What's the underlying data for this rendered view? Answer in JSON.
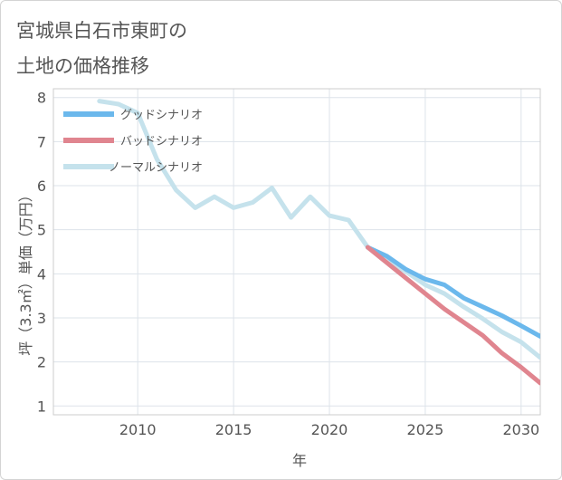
{
  "title_lines": [
    "宮城県白石市東町の",
    "土地の価格推移"
  ],
  "chart_data": {
    "type": "line",
    "title": "宮城県白石市東町の土地の価格推移",
    "xlabel": "年",
    "ylabel": "坪（3.3㎡）単価（万円）",
    "xlim": [
      2005.6,
      2031.0
    ],
    "ylim": [
      0.8,
      8.2
    ],
    "xticks": [
      2010,
      2015,
      2020,
      2025,
      2030
    ],
    "yticks": [
      1,
      2,
      3,
      4,
      5,
      6,
      7,
      8
    ],
    "grid": true,
    "legend_position": "top-left",
    "series": [
      {
        "name": "ノーマルシナリオ",
        "color": "#c5e2ec",
        "x": [
          2008,
          2009,
          2010,
          2011,
          2012,
          2013,
          2014,
          2015,
          2016,
          2017,
          2018,
          2019,
          2020,
          2021,
          2022,
          2023,
          2024,
          2025,
          2026,
          2027,
          2028,
          2029,
          2030,
          2031
        ],
        "values": [
          7.92,
          7.85,
          7.65,
          6.6,
          5.9,
          5.5,
          5.75,
          5.5,
          5.62,
          5.95,
          5.28,
          5.75,
          5.32,
          5.22,
          4.6,
          4.3,
          4.05,
          3.75,
          3.55,
          3.25,
          2.98,
          2.68,
          2.45,
          2.1
        ]
      },
      {
        "name": "グッドシナリオ",
        "color": "#6bb8ec",
        "x": [
          2022,
          2023,
          2024,
          2025,
          2026,
          2027,
          2028,
          2029,
          2030,
          2031
        ],
        "values": [
          4.6,
          4.4,
          4.1,
          3.88,
          3.75,
          3.45,
          3.25,
          3.05,
          2.82,
          2.58
        ]
      },
      {
        "name": "バッドシナリオ",
        "color": "#e0858f",
        "x": [
          2022,
          2023,
          2024,
          2025,
          2026,
          2027,
          2028,
          2029,
          2030,
          2031
        ],
        "values": [
          4.6,
          4.25,
          3.9,
          3.55,
          3.2,
          2.9,
          2.6,
          2.2,
          1.88,
          1.52
        ]
      }
    ],
    "legend_order": [
      "グッドシナリオ",
      "バッドシナリオ",
      "ノーマルシナリオ"
    ]
  }
}
